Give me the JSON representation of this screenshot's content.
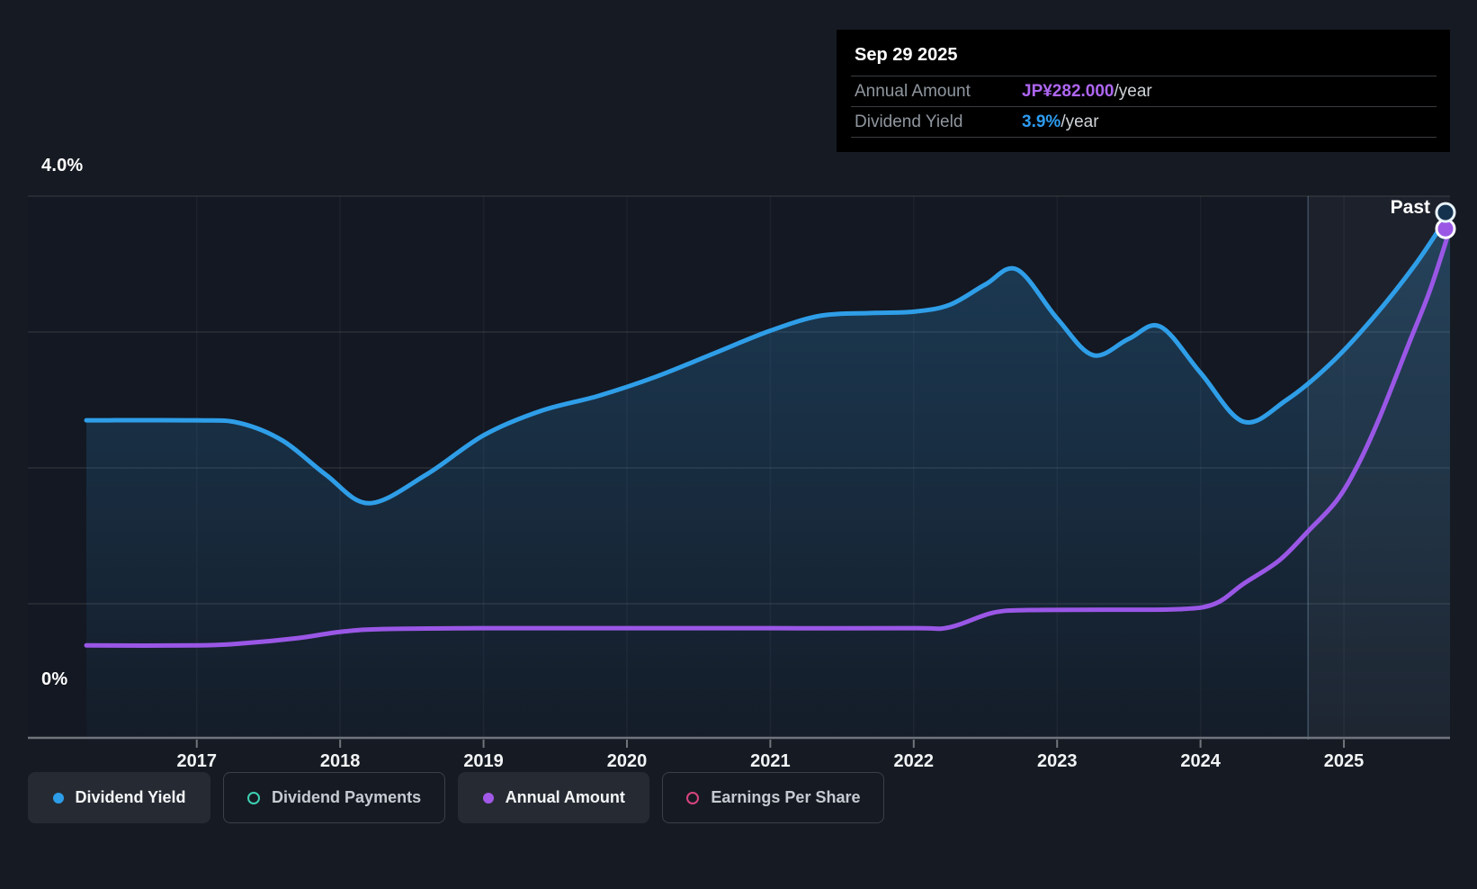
{
  "tooltip": {
    "date": "Sep 29 2025",
    "rows": [
      {
        "label": "Annual Amount",
        "value": "JP¥282.000",
        "suffix": "/year",
        "value_color": "#ae66f2"
      },
      {
        "label": "Dividend Yield",
        "value": "3.9%",
        "suffix": "/year",
        "value_color": "#2d9bf0"
      }
    ]
  },
  "chart_data": {
    "type": "area",
    "x_axis": {
      "ticks": [
        2017,
        2018,
        2019,
        2020,
        2021,
        2022,
        2023,
        2024,
        2025
      ],
      "range": [
        2016.23,
        2025.74
      ]
    },
    "y_axis": {
      "unit": "%",
      "range": [
        0,
        4
      ],
      "gridline_step": 1,
      "top_label": "4.0%",
      "bottom_label": "0%"
    },
    "past_label": "Past",
    "highlight_from": 2024.75,
    "series": [
      {
        "name": "Dividend Yield",
        "unit": "%",
        "color": "#2f9ee8",
        "area": true,
        "marker": "ring",
        "points": [
          [
            2016.23,
            2.35
          ],
          [
            2017.0,
            2.35
          ],
          [
            2017.3,
            2.33
          ],
          [
            2017.6,
            2.2
          ],
          [
            2017.9,
            1.95
          ],
          [
            2018.2,
            1.74
          ],
          [
            2018.6,
            1.95
          ],
          [
            2019.0,
            2.24
          ],
          [
            2019.4,
            2.42
          ],
          [
            2019.8,
            2.53
          ],
          [
            2020.2,
            2.67
          ],
          [
            2020.6,
            2.84
          ],
          [
            2021.0,
            3.01
          ],
          [
            2021.35,
            3.12
          ],
          [
            2021.7,
            3.14
          ],
          [
            2022.0,
            3.15
          ],
          [
            2022.25,
            3.2
          ],
          [
            2022.5,
            3.35
          ],
          [
            2022.72,
            3.46
          ],
          [
            2023.0,
            3.1
          ],
          [
            2023.25,
            2.83
          ],
          [
            2023.5,
            2.95
          ],
          [
            2023.72,
            3.04
          ],
          [
            2024.0,
            2.7
          ],
          [
            2024.3,
            2.34
          ],
          [
            2024.6,
            2.5
          ],
          [
            2024.9,
            2.76
          ],
          [
            2025.2,
            3.1
          ],
          [
            2025.5,
            3.5
          ],
          [
            2025.74,
            3.88
          ]
        ]
      },
      {
        "name": "Annual Amount",
        "unit": "JP¥",
        "color": "#9a57e6",
        "value_range": [
          0,
          300
        ],
        "marker": "dot",
        "points": [
          [
            2016.23,
            52
          ],
          [
            2017.0,
            52
          ],
          [
            2017.3,
            53
          ],
          [
            2017.7,
            56
          ],
          [
            2018.0,
            59.5
          ],
          [
            2018.3,
            61
          ],
          [
            2019.0,
            61.5
          ],
          [
            2020.0,
            61.5
          ],
          [
            2021.0,
            61.5
          ],
          [
            2022.0,
            61.5
          ],
          [
            2022.25,
            62
          ],
          [
            2022.55,
            70
          ],
          [
            2022.8,
            71.5
          ],
          [
            2023.3,
            71.7
          ],
          [
            2023.85,
            72
          ],
          [
            2024.1,
            75
          ],
          [
            2024.3,
            86
          ],
          [
            2024.55,
            99
          ],
          [
            2024.75,
            115
          ],
          [
            2024.95,
            132
          ],
          [
            2025.1,
            152
          ],
          [
            2025.25,
            178
          ],
          [
            2025.45,
            218
          ],
          [
            2025.6,
            248
          ],
          [
            2025.74,
            282
          ]
        ]
      }
    ]
  },
  "legend": {
    "items": [
      {
        "label": "Dividend Yield",
        "style": "filled",
        "color": "#2d9de8",
        "active": true
      },
      {
        "label": "Dividend Payments",
        "style": "outline",
        "color": "#3ecfb2",
        "active": false
      },
      {
        "label": "Annual Amount",
        "style": "filled",
        "color": "#a259e8",
        "active": true
      },
      {
        "label": "Earnings Per Share",
        "style": "outline",
        "color": "#d9447e",
        "active": false
      }
    ]
  }
}
